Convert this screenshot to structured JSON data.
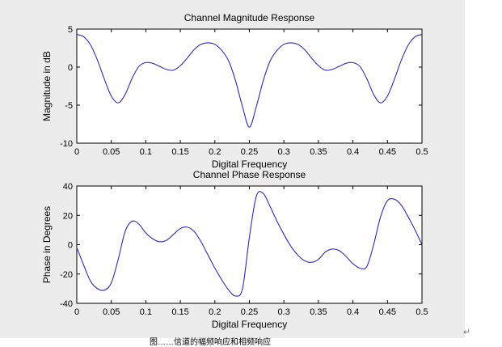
{
  "figure": {
    "caption": "图……信道的幅频响应和相频响应",
    "paragraph_mark": "↵",
    "colors": {
      "background": "#ececec",
      "axes_face": "#ffffff",
      "line": "#2b2bb8",
      "axis": "#000000"
    }
  },
  "chart_data": [
    {
      "type": "line",
      "title": "Channel Magnitude Response",
      "xlabel": "Digital Frequency",
      "ylabel": "Magnitude in dB",
      "xlim": [
        0,
        0.5
      ],
      "ylim": [
        -10,
        5
      ],
      "xticks": [
        0,
        0.05,
        0.1,
        0.15,
        0.2,
        0.25,
        0.3,
        0.35,
        0.4,
        0.45,
        0.5
      ],
      "xtick_labels": [
        "0",
        "0.05",
        "0.1",
        "0.15",
        "0.2",
        "0.25",
        "0.3",
        "0.35",
        "0.4",
        "0.45",
        "0.5"
      ],
      "yticks": [
        -10,
        -5,
        0,
        5
      ],
      "ytick_labels": [
        "-10",
        "-5",
        "0",
        "5"
      ],
      "grid": false,
      "series": [
        {
          "color": "#2b2bb8",
          "x": [
            0,
            0.01,
            0.02,
            0.03,
            0.04,
            0.05,
            0.06,
            0.07,
            0.08,
            0.09,
            0.1,
            0.11,
            0.12,
            0.13,
            0.14,
            0.15,
            0.16,
            0.17,
            0.18,
            0.19,
            0.2,
            0.21,
            0.22,
            0.23,
            0.24,
            0.25,
            0.26,
            0.27,
            0.28,
            0.29,
            0.3,
            0.31,
            0.32,
            0.33,
            0.34,
            0.35,
            0.36,
            0.37,
            0.38,
            0.39,
            0.4,
            0.41,
            0.42,
            0.43,
            0.44,
            0.45,
            0.46,
            0.47,
            0.48,
            0.49,
            0.5
          ],
          "y": [
            4.3,
            4.0,
            2.9,
            0.9,
            -1.6,
            -3.8,
            -4.7,
            -3.6,
            -1.5,
            0.1,
            0.6,
            0.5,
            0.1,
            -0.3,
            -0.4,
            0.2,
            1.2,
            2.3,
            3.0,
            3.2,
            3.0,
            2.2,
            0.8,
            -1.8,
            -5.2,
            -7.9,
            -5.2,
            -1.8,
            0.8,
            2.2,
            3.0,
            3.2,
            3.0,
            2.3,
            1.2,
            0.2,
            -0.4,
            -0.3,
            0.1,
            0.5,
            0.6,
            0.1,
            -1.5,
            -3.6,
            -4.7,
            -3.8,
            -1.6,
            0.9,
            2.9,
            4.0,
            4.3
          ]
        }
      ]
    },
    {
      "type": "line",
      "title": "Channel Phase Response",
      "xlabel": "Digital Frequency",
      "ylabel": "Phase in Degrees",
      "xlim": [
        0,
        0.5
      ],
      "ylim": [
        -40,
        40
      ],
      "xticks": [
        0,
        0.05,
        0.1,
        0.15,
        0.2,
        0.25,
        0.3,
        0.35,
        0.4,
        0.45,
        0.5
      ],
      "xtick_labels": [
        "0",
        "0.05",
        "0.1",
        "0.15",
        "0.2",
        "0.25",
        "0.3",
        "0.35",
        "0.4",
        "0.45",
        "0.5"
      ],
      "yticks": [
        -40,
        -20,
        0,
        20,
        40
      ],
      "ytick_labels": [
        "-40",
        "-20",
        "0",
        "20",
        "40"
      ],
      "grid": false,
      "series": [
        {
          "color": "#2b2bb8",
          "x": [
            0,
            0.01,
            0.02,
            0.03,
            0.04,
            0.05,
            0.06,
            0.07,
            0.08,
            0.09,
            0.1,
            0.11,
            0.12,
            0.13,
            0.14,
            0.15,
            0.16,
            0.17,
            0.18,
            0.19,
            0.2,
            0.21,
            0.22,
            0.23,
            0.24,
            0.25,
            0.26,
            0.27,
            0.28,
            0.29,
            0.3,
            0.31,
            0.32,
            0.33,
            0.34,
            0.35,
            0.36,
            0.37,
            0.38,
            0.39,
            0.4,
            0.41,
            0.42,
            0.43,
            0.44,
            0.45,
            0.46,
            0.47,
            0.48,
            0.49,
            0.5
          ],
          "y": [
            -2,
            -14,
            -25,
            -30,
            -31,
            -26,
            -10,
            9,
            16,
            14,
            8,
            4,
            2,
            3,
            7,
            11,
            12,
            9,
            2,
            -7,
            -16,
            -24,
            -31,
            -35,
            -30,
            5,
            33,
            35,
            26,
            16,
            7,
            -1,
            -7,
            -11,
            -12,
            -10,
            -5,
            -3,
            -4,
            -8,
            -13,
            -16,
            -15,
            0,
            19,
            30,
            31,
            27,
            19,
            10,
            0
          ]
        }
      ]
    }
  ]
}
